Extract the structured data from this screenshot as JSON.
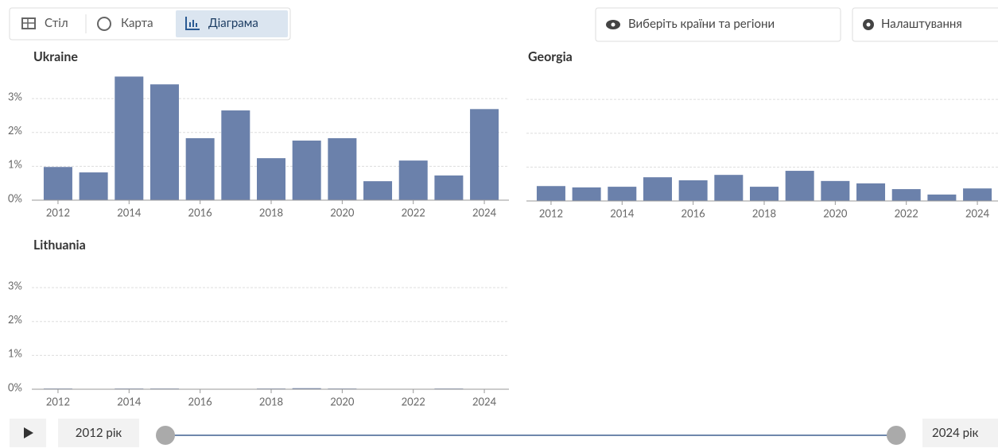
{
  "ui": {
    "tabs": [
      "Стіл",
      "Карта",
      "Діаграма"
    ],
    "buttons": [
      "Виберіть країни та регіони",
      "Налаштування"
    ],
    "timeline": {
      "start": "2012 рік",
      "end": "2024 рік"
    }
  },
  "chart_data": [
    {
      "type": "bar",
      "title": "Ukraine",
      "color": "#6b81ab",
      "grid": true,
      "show_ytick_labels": true,
      "x": [
        2012,
        2013,
        2014,
        2015,
        2016,
        2017,
        2018,
        2019,
        2020,
        2021,
        2022,
        2023,
        2024
      ],
      "values": [
        0.98,
        0.82,
        3.65,
        3.42,
        1.83,
        2.65,
        1.24,
        1.76,
        1.83,
        0.56,
        1.17,
        0.73,
        2.69
      ],
      "xlim": [
        2011.5,
        2024.5
      ],
      "xticks": [
        2012,
        2014,
        2016,
        2018,
        2020,
        2022,
        2024
      ],
      "ylim": [
        0,
        3.8
      ],
      "yticks": [
        {
          "value": 0,
          "label": "0%"
        },
        {
          "value": 1,
          "label": "1%"
        },
        {
          "value": 2,
          "label": "2%"
        },
        {
          "value": 3,
          "label": "3%"
        }
      ]
    },
    {
      "type": "bar",
      "title": "Georgia",
      "color": "#6b81ab",
      "grid": true,
      "show_ytick_labels": false,
      "x": [
        2012,
        2013,
        2014,
        2015,
        2016,
        2017,
        2018,
        2019,
        2020,
        2021,
        2022,
        2023,
        2024
      ],
      "values": [
        0.44,
        0.4,
        0.42,
        0.7,
        0.61,
        0.77,
        0.42,
        0.89,
        0.59,
        0.52,
        0.35,
        0.19,
        0.37
      ],
      "xlim": [
        2011.5,
        2024.5
      ],
      "xticks": [
        2012,
        2014,
        2016,
        2018,
        2020,
        2022,
        2024
      ],
      "ylim": [
        0,
        3.8
      ],
      "yticks": [
        0,
        1,
        2,
        3
      ]
    },
    {
      "type": "bar",
      "title": "Lithuania",
      "color": "#6b81ab",
      "grid": true,
      "show_ytick_labels": true,
      "x": [
        2012,
        2013,
        2014,
        2015,
        2016,
        2017,
        2018,
        2019,
        2020,
        2021,
        2022,
        2023,
        2024
      ],
      "values": [
        0.02,
        0.01,
        0.02,
        0.02,
        0.01,
        0.01,
        0.02,
        0.03,
        0.02,
        0.01,
        0.01,
        0.02,
        0.01
      ],
      "xlim": [
        2011.5,
        2024.5
      ],
      "xticks": [
        2012,
        2014,
        2016,
        2018,
        2020,
        2022,
        2024
      ],
      "ylim": [
        0,
        3.8
      ],
      "yticks": [
        {
          "value": 0,
          "label": "0%"
        },
        {
          "value": 1,
          "label": "1%"
        },
        {
          "value": 2,
          "label": "2%"
        },
        {
          "value": 3,
          "label": "3%"
        }
      ]
    }
  ]
}
